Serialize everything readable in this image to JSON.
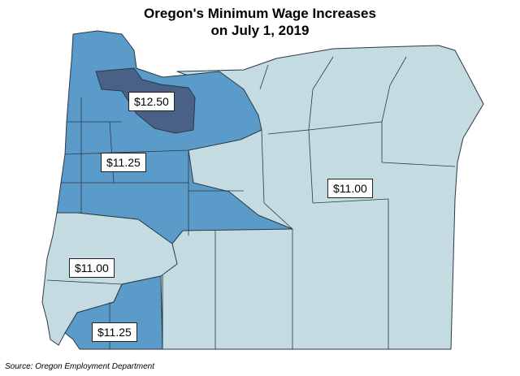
{
  "title_line1": "Oregon's Minimum Wage Increases",
  "title_line2": "on July 1, 2019",
  "labels": {
    "portland": "$12.50",
    "standard": "$11.25",
    "east": "$11.00",
    "southwest": "$11.00",
    "south": "$11.25"
  },
  "source": "Source: Oregon Employment Department",
  "colors": {
    "portland": "#4a6187",
    "standard": "#5b9bc9",
    "nonurban": "#c3dbe1",
    "border": "#2b3a45"
  }
}
